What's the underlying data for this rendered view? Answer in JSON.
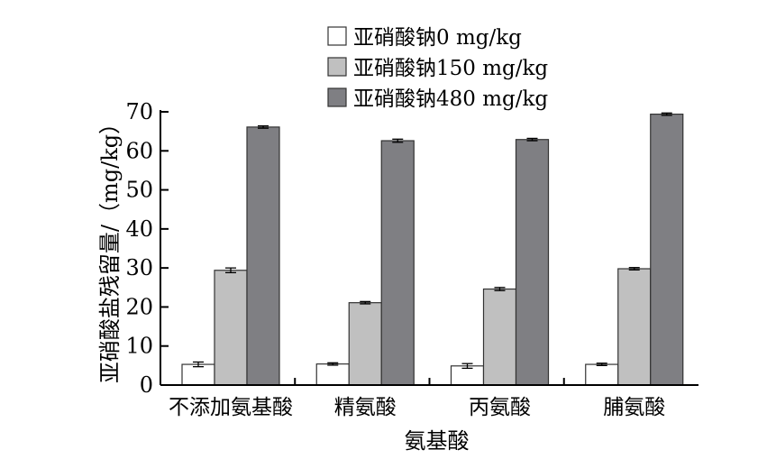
{
  "chart_data": {
    "type": "bar",
    "categories": [
      "不添加氨基酸",
      "精氨酸",
      "丙氨酸",
      "脯氨酸"
    ],
    "series": [
      {
        "name": "亚硝酸钠0 mg/kg",
        "values": [
          5.3,
          5.4,
          4.9,
          5.3
        ],
        "errors": [
          0.6,
          0.3,
          0.6,
          0.3
        ],
        "color": "#ffffff"
      },
      {
        "name": "亚硝酸钠150 mg/kg",
        "values": [
          29.4,
          21.1,
          24.6,
          29.8
        ],
        "errors": [
          0.6,
          0.3,
          0.4,
          0.3
        ],
        "color": "#c0c0c0"
      },
      {
        "name": "亚硝酸钠480 mg/kg",
        "values": [
          66.1,
          62.6,
          62.9,
          69.4
        ],
        "errors": [
          0.3,
          0.4,
          0.3,
          0.3
        ],
        "color": "#7f7f83"
      }
    ],
    "xlabel": "氨基酸",
    "ylabel": "亚硝酸盐残留量/（mg/kg）",
    "ylim": [
      0,
      70
    ],
    "yticks": [
      0,
      10,
      20,
      30,
      40,
      50,
      60,
      70
    ],
    "grid": false,
    "legend": "top"
  }
}
